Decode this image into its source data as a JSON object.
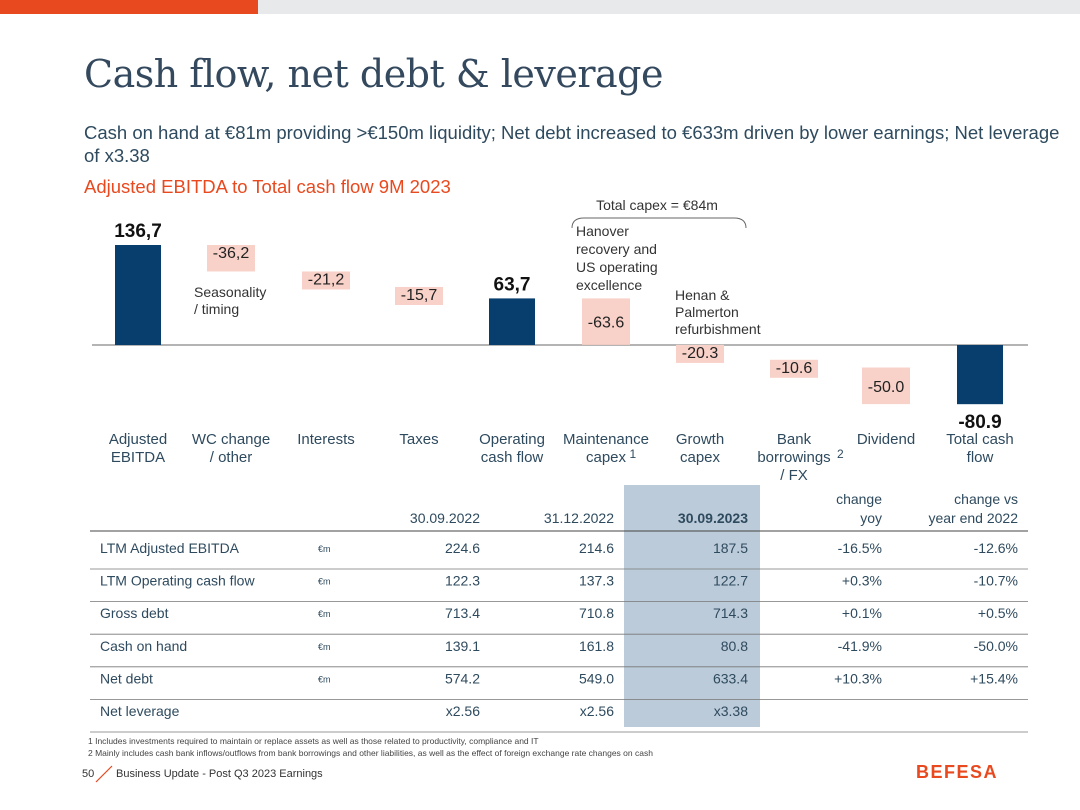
{
  "header": {
    "title": "Cash flow, net debt & leverage",
    "subtitle": "Cash on hand at €81m providing >€150m liquidity; Net debt increased to €633m driven by lower earnings; Net leverage of x3.38"
  },
  "colors": {
    "accent": "#e8491e",
    "bar": "#073e6e",
    "negative_label_bg": "#f8d1c8",
    "highlight_col": "#bccbd9"
  },
  "chart_data": {
    "type": "bar",
    "subtype": "waterfall",
    "title": "Adjusted EBITDA to Total cash flow 9M 2023",
    "categories": [
      "Adjusted EBITDA",
      "WC change / other",
      "Interests",
      "Taxes",
      "Operating cash flow",
      "Maintenance capex",
      "Growth capex",
      "Bank borrowings / FX",
      "Dividend",
      "Total cash flow"
    ],
    "category_lines": [
      [
        "Adjusted",
        "EBITDA"
      ],
      [
        "WC change",
        "/ other"
      ],
      [
        "Interests"
      ],
      [
        "Taxes"
      ],
      [
        "Operating",
        "cash flow"
      ],
      [
        "Maintenance",
        "capex"
      ],
      [
        "Growth",
        "capex"
      ],
      [
        "Bank",
        "borrowings",
        "/ FX"
      ],
      [
        "Dividend"
      ],
      [
        "Total cash",
        "flow"
      ]
    ],
    "category_superscripts": [
      "",
      "",
      "",
      "",
      "",
      "1",
      "",
      "2",
      "",
      ""
    ],
    "values": [
      136.7,
      -36.2,
      -21.2,
      -15.7,
      63.7,
      -63.6,
      -20.3,
      -10.6,
      -50.0,
      -80.9
    ],
    "kinds": [
      "total",
      "delta",
      "delta",
      "delta",
      "total",
      "delta",
      "delta",
      "delta",
      "delta",
      "total"
    ],
    "value_labels": [
      "136,7",
      "-36,2",
      "-21,2",
      "-15,7",
      "63,7",
      "-63.6",
      "-20.3",
      "-10.6",
      "-50.0",
      "-80.9"
    ],
    "annotations": {
      "seasonality": [
        "Seasonality",
        "/ timing"
      ],
      "hanover": [
        "Hanover",
        "recovery and",
        "US operating",
        "excellence"
      ],
      "henan": [
        "Henan &",
        "Palmerton",
        "refurbishment"
      ],
      "total_capex": "Total capex = €84m"
    }
  },
  "table": {
    "headers": [
      [
        "",
        ""
      ],
      [
        "",
        ""
      ],
      [
        "",
        "30.09.2022"
      ],
      [
        "",
        "31.12.2022"
      ],
      [
        "",
        "30.09.2023"
      ],
      [
        "change",
        "yoy"
      ],
      [
        "change vs",
        "year end 2022"
      ]
    ],
    "rows": [
      {
        "label": "LTM Adjusted EBITDA",
        "unit": "€m",
        "v1": "224.6",
        "v2": "214.6",
        "v3": "187.5",
        "yoy": "-16.5%",
        "ye": "-12.6%"
      },
      {
        "label": "LTM Operating cash flow",
        "unit": "€m",
        "v1": "122.3",
        "v2": "137.3",
        "v3": "122.7",
        "yoy": "+0.3%",
        "ye": "-10.7%"
      },
      {
        "label": "Gross debt",
        "unit": "€m",
        "v1": "713.4",
        "v2": "710.8",
        "v3": "714.3",
        "yoy": "+0.1%",
        "ye": "+0.5%"
      },
      {
        "label": "Cash on hand",
        "unit": "€m",
        "v1": "139.1",
        "v2": "161.8",
        "v3": "80.8",
        "yoy": "-41.9%",
        "ye": "-50.0%"
      },
      {
        "label": "Net debt",
        "unit": "€m",
        "v1": "574.2",
        "v2": "549.0",
        "v3": "633.4",
        "yoy": "+10.3%",
        "ye": "+15.4%"
      },
      {
        "label": "Net leverage",
        "unit": "",
        "v1": "x2.56",
        "v2": "x2.56",
        "v3": "x3.38",
        "yoy": "",
        "ye": ""
      }
    ]
  },
  "footnotes": {
    "n1": "1   Includes investments required to maintain or replace assets as well as those related to productivity, compliance and IT",
    "n2": "2   Mainly includes cash bank inflows/outflows from bank borrowings and other liabilities, as well as the effect of foreign exchange rate changes on cash"
  },
  "footer": {
    "page": "50",
    "text": "Business Update - Post Q3 2023 Earnings",
    "logo": "BEFESA"
  }
}
